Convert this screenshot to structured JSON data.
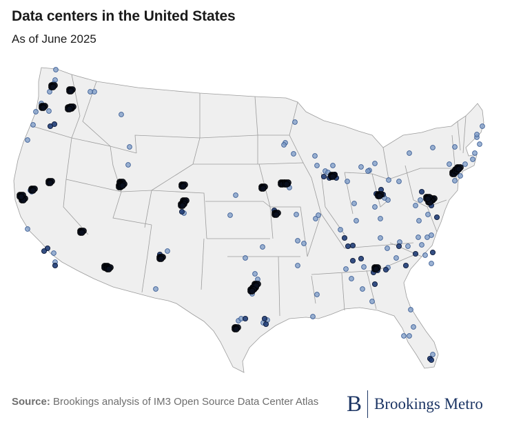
{
  "header": {
    "title": "Data centers in the United States",
    "subtitle": "As of June 2025"
  },
  "map": {
    "land_color": "#efefef",
    "border_color": "#9b9b9b",
    "light_marker_color": "#7b9ac6",
    "dark_marker_color": "#1f3c75",
    "cluster_color": "#0a0f1e"
  },
  "footer": {
    "source_label": "Source:",
    "source_text": "Brookings analysis of IM3 Open Source Data Center Atlas",
    "logo_mark": "B",
    "logo_text": "Brookings Metro"
  }
}
